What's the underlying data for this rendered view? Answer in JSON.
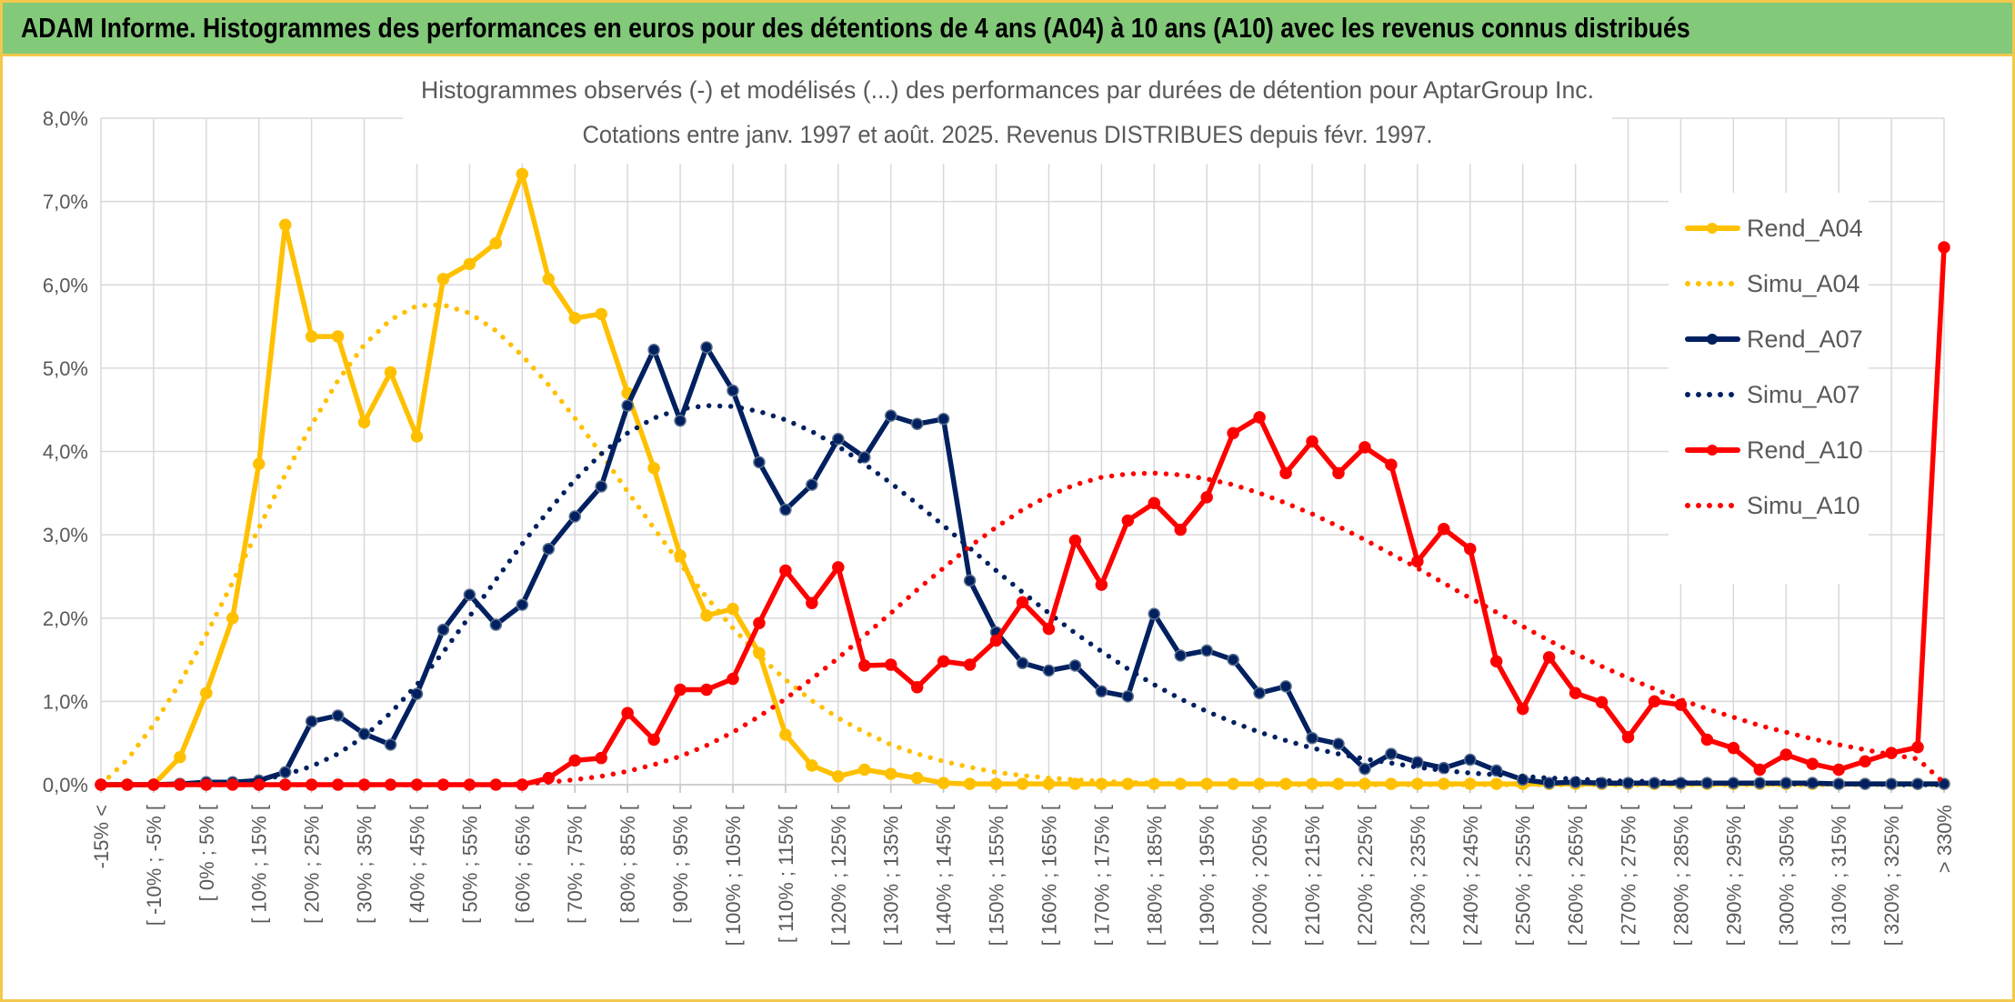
{
  "page": {
    "banner_title": "ADAM Informe. Histogrammes des performances en euros pour des détentions de 4 ans (A04) à 10 ans (A10) avec les revenus connus distribués"
  },
  "colors": {
    "A04": "#ffc000",
    "A07": "#002060",
    "A10": "#ff0000",
    "grid": "#d9d9d9",
    "axis_text": "#595959",
    "banner_bg": "#82c97a",
    "frame": "#f2c94c"
  },
  "chart_data": {
    "type": "line",
    "title": "Histogrammes observés (-) et modélisés (...) des performances par durées de détention pour AptarGroup Inc.",
    "subtitle": "Cotations entre janv. 1997 et août. 2025. Revenus DISTRIBUES depuis févr. 1997.",
    "xlabel": "",
    "ylabel": "",
    "y_ticks": [
      "0,0%",
      "1,0%",
      "2,0%",
      "3,0%",
      "4,0%",
      "5,0%",
      "6,0%",
      "7,0%",
      "8,0%"
    ],
    "ylim": [
      0,
      8
    ],
    "y_unit": "%",
    "grid": true,
    "legend_position": "right",
    "categories": [
      "-15% <",
      "[ -15% ; -10% [",
      "[ -10% ; -5% [",
      "[ -5% ; 0% [",
      "[ 0% ; 5% [",
      "[ 5% ; 10% [",
      "[ 10% ; 15% [",
      "[ 15% ; 20% [",
      "[ 20% ; 25% [",
      "[ 25% ; 30% [",
      "[ 30% ; 35% [",
      "[ 35% ; 40% [",
      "[ 40% ; 45% [",
      "[ 45% ; 50% [",
      "[ 50% ; 55% [",
      "[ 55% ; 60% [",
      "[ 60% ; 65% [",
      "[ 65% ; 70% [",
      "[ 70% ; 75% [",
      "[ 75% ; 80% [",
      "[ 80% ; 85% [",
      "[ 85% ; 90% [",
      "[ 90% ; 95% [",
      "[ 95% ; 100% [",
      "[ 100% ; 105% [",
      "[ 105% ; 110% [",
      "[ 110% ; 115% [",
      "[ 115% ; 120% [",
      "[ 120% ; 125% [",
      "[ 125% ; 130% [",
      "[ 130% ; 135% [",
      "[ 135% ; 140% [",
      "[ 140% ; 145% [",
      "[ 145% ; 150% [",
      "[ 150% ; 155% [",
      "[ 155% ; 160% [",
      "[ 160% ; 165% [",
      "[ 165% ; 170% [",
      "[ 170% ; 175% [",
      "[ 175% ; 180% [",
      "[ 180% ; 185% [",
      "[ 185% ; 190% [",
      "[ 190% ; 195% [",
      "[ 195% ; 200% [",
      "[ 200% ; 205% [",
      "[ 205% ; 210% [",
      "[ 210% ; 215% [",
      "[ 215% ; 220% [",
      "[ 220% ; 225% [",
      "[ 225% ; 230% [",
      "[ 230% ; 235% [",
      "[ 235% ; 240% [",
      "[ 240% ; 245% [",
      "[ 245% ; 250% [",
      "[ 250% ; 255% [",
      "[ 255% ; 260% [",
      "[ 260% ; 265% [",
      "[ 265% ; 270% [",
      "[ 270% ; 275% [",
      "[ 275% ; 280% [",
      "[ 280% ; 285% [",
      "[ 285% ; 290% [",
      "[ 290% ; 295% [",
      "[ 295% ; 300% [",
      "[ 300% ; 305% [",
      "[ 305% ; 310% [",
      "[ 310% ; 315% [",
      "[ 315% ; 320% [",
      "[ 320% ; 325% [",
      "[ 325% ; 330% [",
      "> 330%"
    ],
    "visible_tick_labels": [
      "-15% <",
      "[ -10% ; -5% [",
      "[ 0% ; 5% [",
      "[ 10% ; 15% [",
      "[ 20% ; 25% [",
      "[ 30% ; 35% [",
      "[ 40% ; 45% [",
      "[ 50% ; 55% [",
      "[ 60% ; 65% [",
      "[ 70% ; 75% [",
      "[ 80% ; 85% [",
      "[ 90% ; 95% [",
      "[ 100% ; 105% [",
      "[ 110% ; 115% [",
      "[ 120% ; 125% [",
      "[ 130% ; 135% [",
      "[ 140% ; 145% [",
      "[ 150% ; 155% [",
      "[ 160% ; 165% [",
      "[ 170% ; 175% [",
      "[ 180% ; 185% [",
      "[ 190% ; 195% [",
      "[ 200% ; 205% [",
      "[ 210% ; 215% [",
      "[ 220% ; 225% [",
      "[ 230% ; 235% [",
      "[ 240% ; 245% [",
      "[ 250% ; 255% [",
      "[ 260% ; 265% [",
      "[ 270% ; 275% [",
      "[ 280% ; 285% [",
      "[ 290% ; 295% [",
      "[ 300% ; 305% [",
      "[ 310% ; 315% [",
      "[ 320% ; 325% ["
    ],
    "series": [
      {
        "name": "Rend_A04",
        "style": "solid",
        "markers": true,
        "color": "#ffc000",
        "values": [
          0,
          0,
          0,
          0.33,
          1.1,
          2.0,
          3.85,
          6.72,
          5.38,
          5.38,
          4.35,
          4.95,
          4.18,
          6.07,
          6.25,
          6.5,
          7.33,
          6.07,
          5.6,
          5.65,
          4.7,
          3.8,
          2.75,
          2.03,
          2.11,
          1.58,
          0.6,
          0.23,
          0.1,
          0.18,
          0.13,
          0.08,
          0.02,
          0.01,
          0.01,
          0.01,
          0.01,
          0.01,
          0.01,
          0.01,
          0.01,
          0.01,
          0.01,
          0.01,
          0.01,
          0.01,
          0.01,
          0.01,
          0.01,
          0.01,
          0.01,
          0.01,
          0.01,
          0.01,
          0.01,
          0.01,
          0.01,
          0.01,
          0.01,
          0.01,
          0.01,
          0.01,
          0.01,
          0.01,
          0.01,
          0.01,
          0.01,
          0.01,
          0.01,
          0.01,
          0.01
        ]
      },
      {
        "name": "Simu_A04",
        "style": "dotted",
        "markers": false,
        "color": "#ffc000",
        "values": [
          0,
          0.3,
          0.72,
          1.22,
          1.8,
          2.43,
          3.08,
          3.72,
          4.32,
          4.85,
          5.28,
          5.58,
          5.75,
          5.76,
          5.66,
          5.45,
          5.15,
          4.8,
          4.4,
          3.97,
          3.52,
          3.08,
          2.65,
          2.25,
          1.88,
          1.55,
          1.26,
          1.01,
          0.8,
          0.63,
          0.48,
          0.37,
          0.28,
          0.21,
          0.15,
          0.11,
          0.08,
          0.06,
          0.04,
          0.03,
          0.02,
          0.01,
          0.01,
          0.01,
          0,
          0,
          0,
          0,
          0,
          0,
          0,
          0,
          0,
          0,
          0,
          0,
          0,
          0,
          0,
          0,
          0,
          0,
          0,
          0,
          0,
          0,
          0,
          0,
          0,
          0,
          0
        ]
      },
      {
        "name": "Rend_A07",
        "style": "solid",
        "markers": true,
        "color": "#002060",
        "values": [
          0,
          0,
          0,
          0.01,
          0.03,
          0.03,
          0.05,
          0.15,
          0.76,
          0.83,
          0.61,
          0.48,
          1.09,
          1.86,
          2.28,
          1.92,
          2.16,
          2.83,
          3.22,
          3.58,
          4.55,
          5.22,
          4.37,
          5.25,
          4.73,
          3.87,
          3.3,
          3.6,
          4.15,
          3.93,
          4.43,
          4.33,
          4.39,
          2.45,
          1.83,
          1.46,
          1.37,
          1.43,
          1.12,
          1.06,
          2.05,
          1.55,
          1.61,
          1.5,
          1.1,
          1.18,
          0.56,
          0.49,
          0.19,
          0.37,
          0.27,
          0.2,
          0.3,
          0.17,
          0.06,
          0.02,
          0.03,
          0.02,
          0.02,
          0.02,
          0.02,
          0.02,
          0.02,
          0.02,
          0.02,
          0.02,
          0.01,
          0.01,
          0.01,
          0.01,
          0.01
        ]
      },
      {
        "name": "Simu_A07",
        "style": "dotted",
        "markers": false,
        "color": "#002060",
        "values": [
          0,
          0,
          0,
          0,
          0.01,
          0.02,
          0.05,
          0.12,
          0.22,
          0.37,
          0.58,
          0.86,
          1.2,
          1.59,
          2.02,
          2.46,
          2.89,
          3.29,
          3.66,
          3.97,
          4.22,
          4.4,
          4.51,
          4.55,
          4.54,
          4.48,
          4.38,
          4.24,
          4.06,
          3.85,
          3.62,
          3.37,
          3.11,
          2.84,
          2.57,
          2.31,
          2.06,
          1.82,
          1.6,
          1.39,
          1.2,
          1.03,
          0.88,
          0.75,
          0.63,
          0.53,
          0.44,
          0.37,
          0.31,
          0.26,
          0.21,
          0.17,
          0.14,
          0.12,
          0.1,
          0.08,
          0.07,
          0.05,
          0.04,
          0.04,
          0.03,
          0.02,
          0.02,
          0.02,
          0.01,
          0.01,
          0.01,
          0.01,
          0,
          0,
          0
        ]
      },
      {
        "name": "Rend_A10",
        "style": "solid",
        "markers": true,
        "color": "#ff0000",
        "values": [
          0,
          0,
          0,
          0,
          0,
          0,
          0,
          0,
          0,
          0,
          0,
          0,
          0,
          0,
          0,
          0,
          0,
          0.08,
          0.29,
          0.32,
          0.86,
          0.54,
          1.14,
          1.14,
          1.27,
          1.94,
          2.57,
          2.18,
          2.61,
          1.43,
          1.44,
          1.17,
          1.48,
          1.44,
          1.73,
          2.19,
          1.87,
          2.93,
          2.4,
          3.17,
          3.38,
          3.06,
          3.45,
          4.22,
          4.41,
          3.74,
          4.12,
          3.74,
          4.05,
          3.84,
          2.68,
          3.07,
          2.83,
          1.48,
          0.91,
          1.53,
          1.1,
          0.99,
          0.57,
          1.0,
          0.96,
          0.54,
          0.44,
          0.18,
          0.36,
          0.25,
          0.18,
          0.28,
          0.38,
          0.45,
          6.45
        ]
      },
      {
        "name": "Simu_A10",
        "style": "dotted",
        "markers": false,
        "color": "#ff0000",
        "values": [
          0,
          0,
          0,
          0,
          0,
          0,
          0,
          0,
          0,
          0,
          0,
          0,
          0,
          0,
          0,
          0,
          0.01,
          0.03,
          0.06,
          0.1,
          0.16,
          0.24,
          0.34,
          0.47,
          0.63,
          0.82,
          1.03,
          1.27,
          1.52,
          1.79,
          2.06,
          2.34,
          2.6,
          2.86,
          3.09,
          3.3,
          3.47,
          3.6,
          3.69,
          3.73,
          3.74,
          3.72,
          3.67,
          3.6,
          3.5,
          3.38,
          3.25,
          3.1,
          2.94,
          2.77,
          2.6,
          2.42,
          2.24,
          2.07,
          1.9,
          1.73,
          1.57,
          1.42,
          1.28,
          1.15,
          1.02,
          0.91,
          0.81,
          0.71,
          0.63,
          0.55,
          0.48,
          0.42,
          0.36,
          0.31,
          0.02
        ]
      }
    ]
  }
}
